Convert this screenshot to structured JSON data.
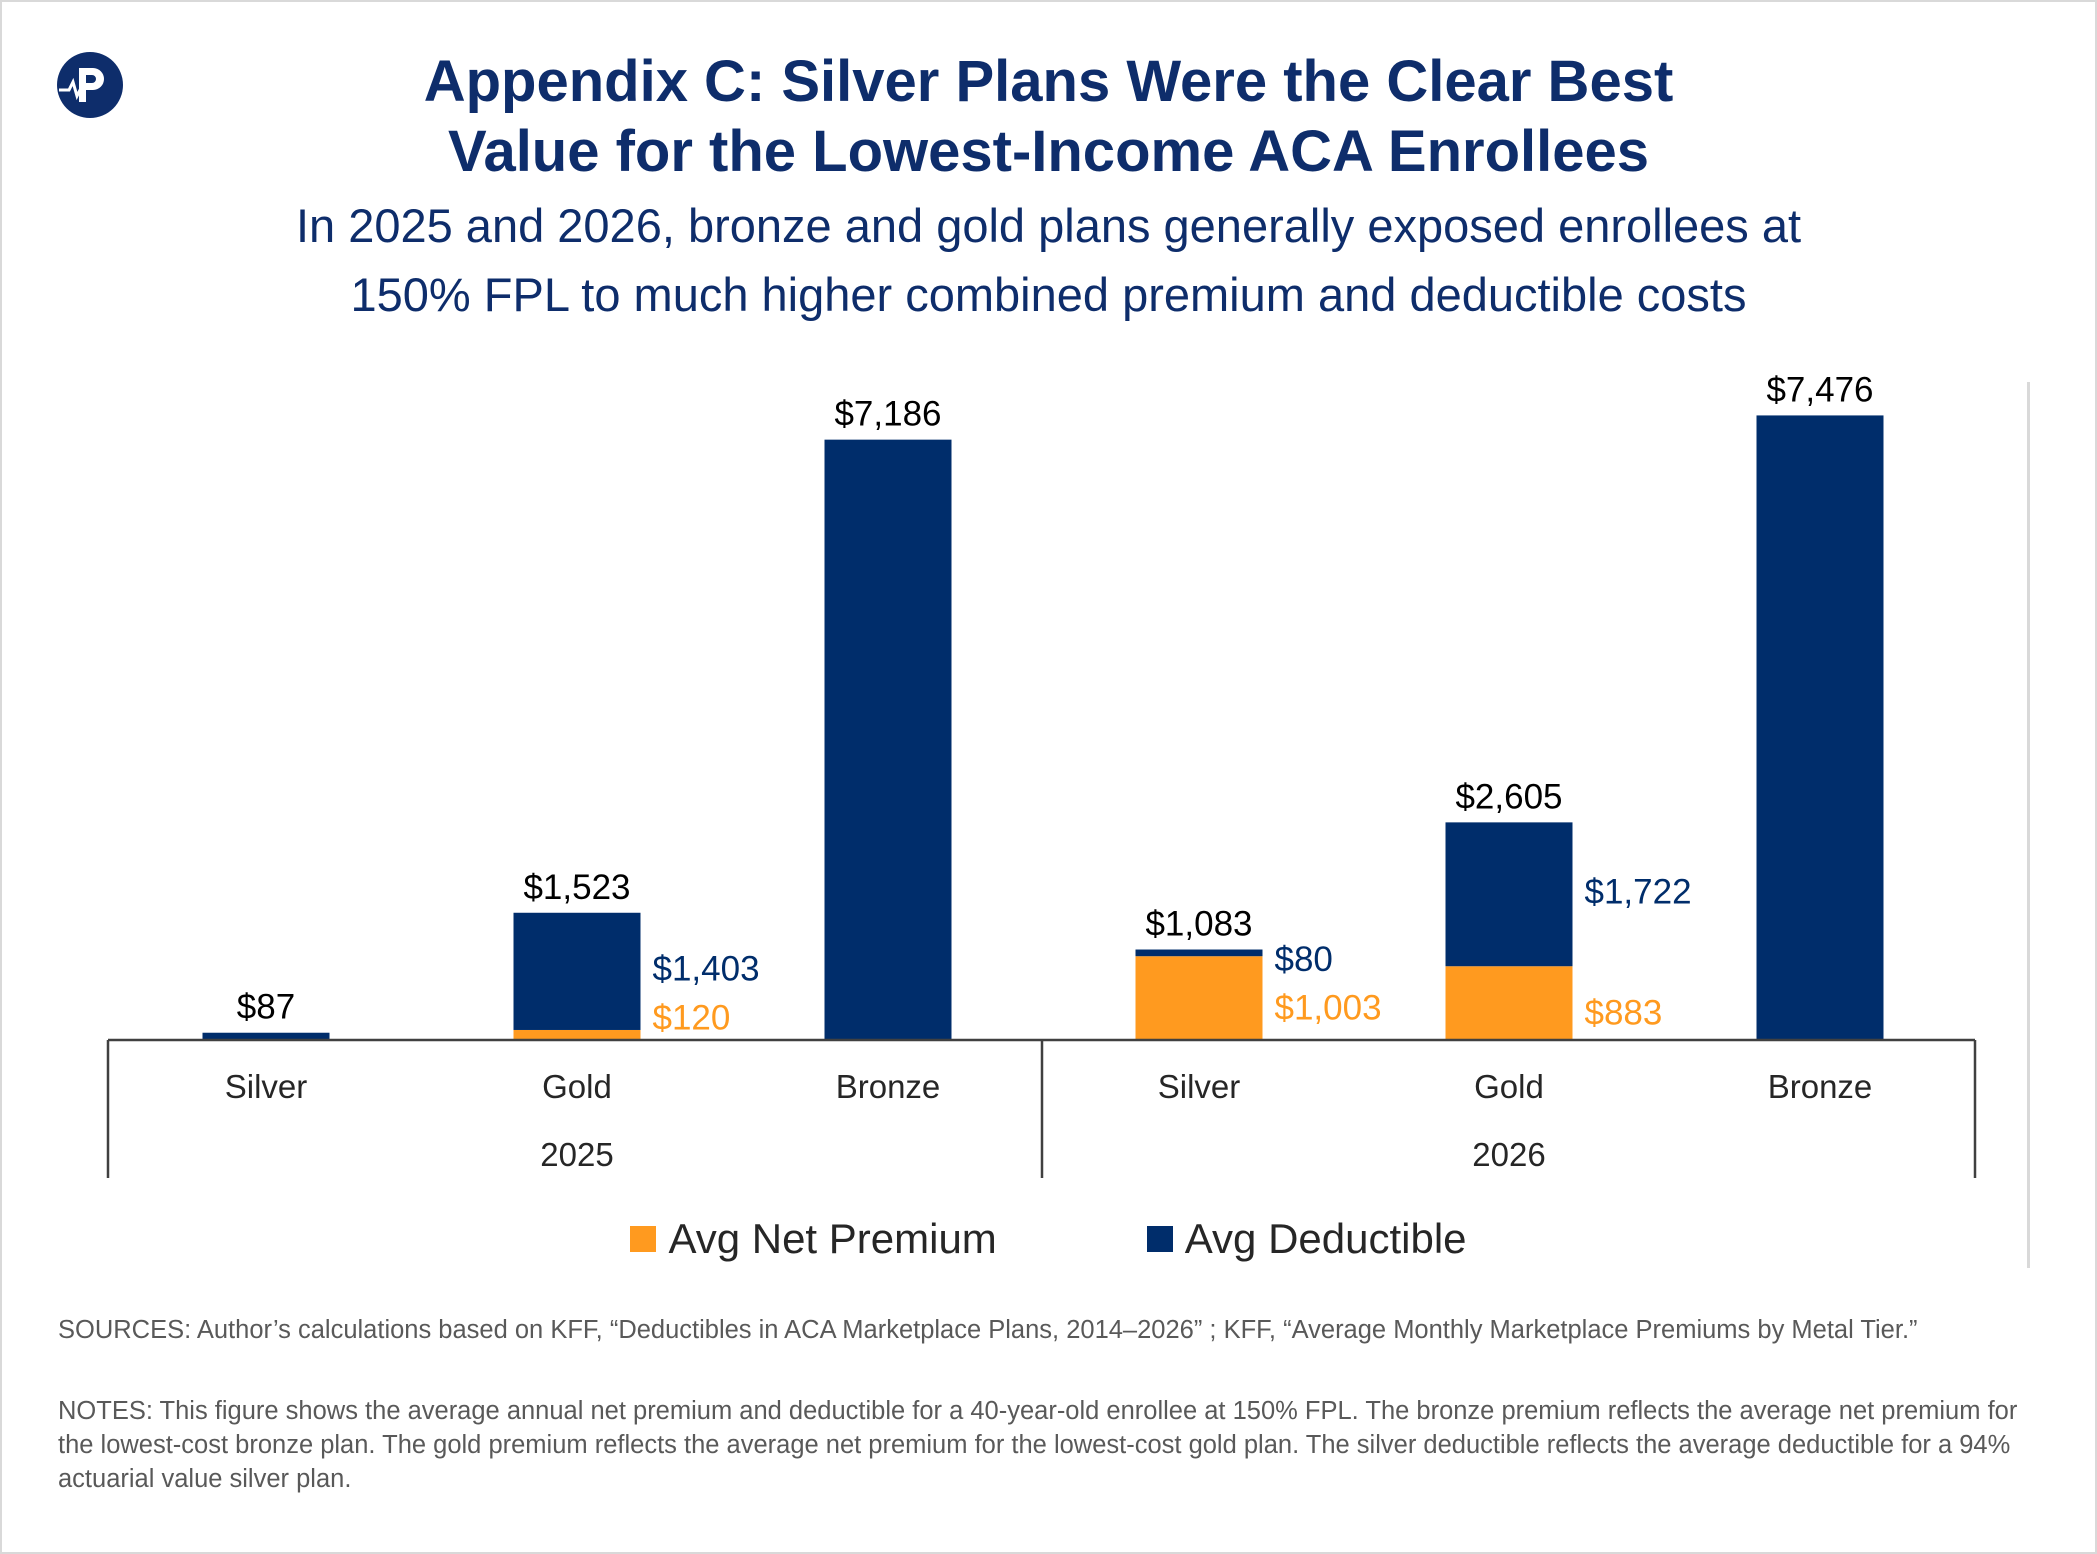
{
  "title": {
    "line1": "Appendix C: Silver Plans Were the Clear Best",
    "line2": "Value for the Lowest-Income ACA Enrollees"
  },
  "subtitle": {
    "line1": "In 2025 and 2026, bronze and gold plans generally exposed enrollees at",
    "line2": "150% FPL to much higher combined premium and deductible costs"
  },
  "chart_data": {
    "type": "bar",
    "stacked": true,
    "groups": [
      {
        "label": "2025",
        "categories": [
          "Silver",
          "Gold",
          "Bronze"
        ]
      },
      {
        "label": "2026",
        "categories": [
          "Silver",
          "Gold",
          "Bronze"
        ]
      }
    ],
    "categories": [
      "Silver",
      "Gold",
      "Bronze",
      "Silver",
      "Gold",
      "Bronze"
    ],
    "series": [
      {
        "name": "Avg Net Premium",
        "color": "#ff9a1f",
        "values": [
          0,
          120,
          0,
          1003,
          883,
          0
        ],
        "labels": [
          "",
          "$120",
          "",
          "$1,003",
          "$883",
          ""
        ]
      },
      {
        "name": "Avg Deductible",
        "color": "#002d6b",
        "values": [
          87,
          1403,
          7186,
          80,
          1722,
          7476
        ],
        "labels": [
          "",
          "$1,403",
          "",
          "$80",
          "$1,722",
          ""
        ]
      }
    ],
    "totals": [
      87,
      1523,
      7186,
      1083,
      2605,
      7476
    ],
    "total_labels": [
      "$87",
      "$1,523",
      "$7,186",
      "$1,083",
      "$2,605",
      "$7,476"
    ],
    "ylim": [
      0,
      7900
    ],
    "grid": false,
    "legend_position": "bottom"
  },
  "legend": [
    {
      "label": "Avg Net Premium",
      "color": "#ff9a1f"
    },
    {
      "label": "Avg Deductible",
      "color": "#002d6b"
    }
  ],
  "footer": {
    "sources": "SOURCES: Author’s calculations based on KFF, “Deductibles in ACA Marketplace Plans, 2014–2026” ; KFF, “Average Monthly Marketplace Premiums by Metal Tier.”",
    "notes": "NOTES: This figure shows the average annual net premium and deductible for a 40-year-old enrollee at 150% FPL. The bronze premium reflects the average net premium for the lowest-cost bronze plan. The gold premium reflects the average net premium for the lowest-cost gold plan. The silver deductible reflects the average deductible for a 94% actuarial value silver plan."
  }
}
